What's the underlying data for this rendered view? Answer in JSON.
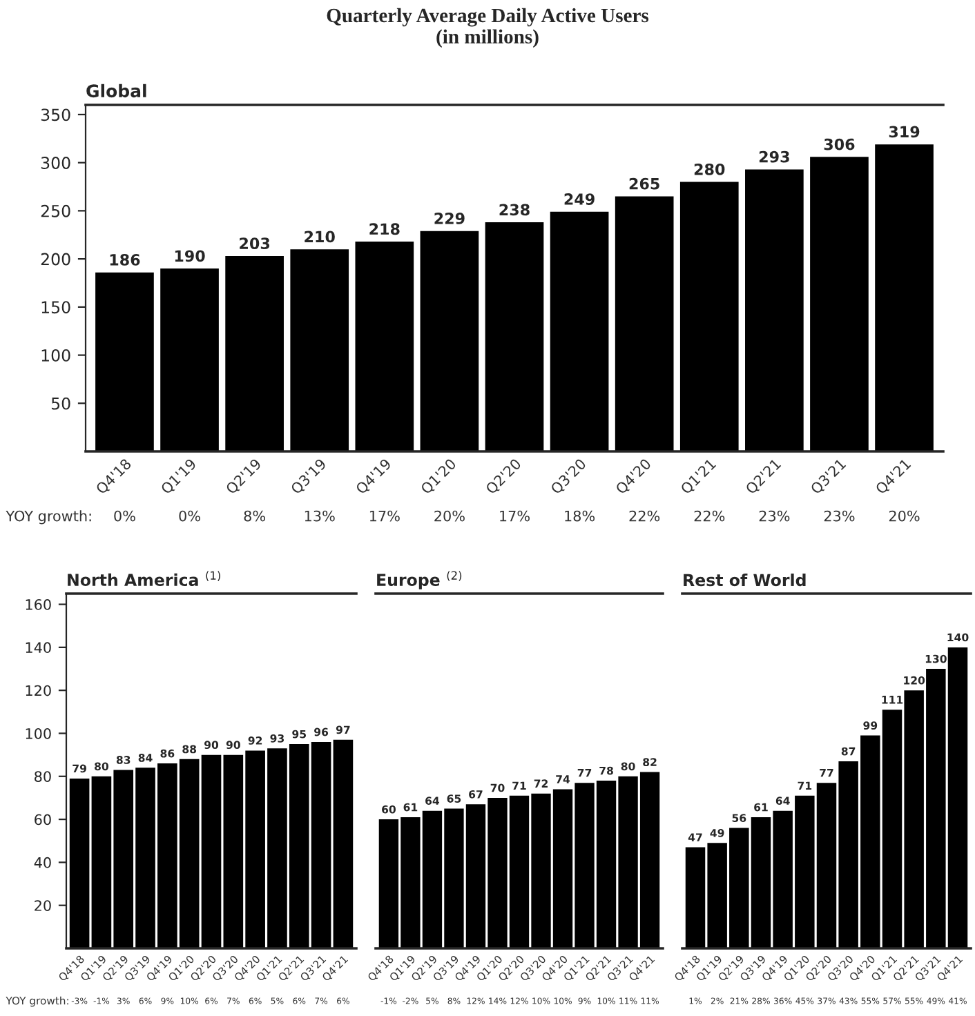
{
  "chart_data": [
    {
      "type": "bar",
      "title": "Quarterly Average Daily Active Users\n(in millions)",
      "subtitle": "Global",
      "categories": [
        "Q4'18",
        "Q1'19",
        "Q2'19",
        "Q3'19",
        "Q4'19",
        "Q1'20",
        "Q2'20",
        "Q3'20",
        "Q4'20",
        "Q1'21",
        "Q2'21",
        "Q3'21",
        "Q4'21"
      ],
      "values": [
        186,
        190,
        203,
        210,
        218,
        229,
        238,
        249,
        265,
        280,
        293,
        306,
        319
      ],
      "color": "#000000",
      "ylim": [
        0,
        360
      ],
      "yticks": [
        50,
        100,
        150,
        200,
        250,
        300,
        350
      ],
      "data_labels": true,
      "annotations": [
        "YOY growth:",
        "0%",
        "0%",
        "8%",
        "13%",
        "17%",
        "20%",
        "17%",
        "18%",
        "22%",
        "22%",
        "23%",
        "23%",
        "20%"
      ]
    },
    {
      "type": "bar",
      "subtitle": "North America $^{(1)}$",
      "categories": [
        "Q4'18",
        "Q1'19",
        "Q2'19",
        "Q3'19",
        "Q4'19",
        "Q1'20",
        "Q2'20",
        "Q3'20",
        "Q4'20",
        "Q1'21",
        "Q2'21",
        "Q3'21",
        "Q4'21"
      ],
      "values": [
        79,
        80,
        83,
        84,
        86,
        88,
        90,
        90,
        92,
        93,
        95,
        96,
        97
      ],
      "color": "#000000",
      "ylim": [
        0,
        165
      ],
      "yticks": [
        20,
        40,
        60,
        80,
        100,
        120,
        140,
        160
      ],
      "data_labels": true,
      "annotations": [
        "YOY growth:",
        "-3%",
        "-1%",
        "3%",
        "6%",
        "9%",
        "10%",
        "6%",
        "7%",
        "6%",
        "5%",
        "6%",
        "7%",
        "6%"
      ]
    },
    {
      "type": "bar",
      "subtitle": "Europe $^{(2)}$",
      "categories": [
        "Q4'18",
        "Q1'19",
        "Q2'19",
        "Q3'19",
        "Q4'19",
        "Q1'20",
        "Q2'20",
        "Q3'20",
        "Q4'20",
        "Q1'21",
        "Q2'21",
        "Q3'21",
        "Q4'21"
      ],
      "values": [
        60,
        61,
        64,
        65,
        67,
        70,
        71,
        72,
        74,
        77,
        78,
        80,
        82
      ],
      "color": "#000000",
      "ylim": [
        0,
        165
      ],
      "yticks": [
        20,
        40,
        60,
        80,
        100,
        120,
        140,
        160
      ],
      "data_labels": true,
      "tick_labels": "x",
      "annotations": [
        "-1%",
        "-2%",
        "5%",
        "8%",
        "12%",
        "14%",
        "12%",
        "10%",
        "10%",
        "9%",
        "10%",
        "11%",
        "11%"
      ]
    },
    {
      "type": "bar",
      "subtitle": "Rest of World",
      "categories": [
        "Q4'18",
        "Q1'19",
        "Q2'19",
        "Q3'19",
        "Q4'19",
        "Q1'20",
        "Q2'20",
        "Q3'20",
        "Q4'20",
        "Q1'21",
        "Q2'21",
        "Q3'21",
        "Q4'21"
      ],
      "values": [
        47,
        49,
        56,
        61,
        64,
        71,
        77,
        87,
        99,
        111,
        120,
        130,
        140
      ],
      "color": "#000000",
      "ylim": [
        0,
        165
      ],
      "yticks": [
        20,
        40,
        60,
        80,
        100,
        120,
        140,
        160
      ],
      "data_labels": true,
      "tick_labels": "x",
      "annotations": [
        "1%",
        "2%",
        "21%",
        "28%",
        "36%",
        "45%",
        "37%",
        "43%",
        "55%",
        "57%",
        "55%",
        "49%",
        "41%"
      ]
    }
  ]
}
